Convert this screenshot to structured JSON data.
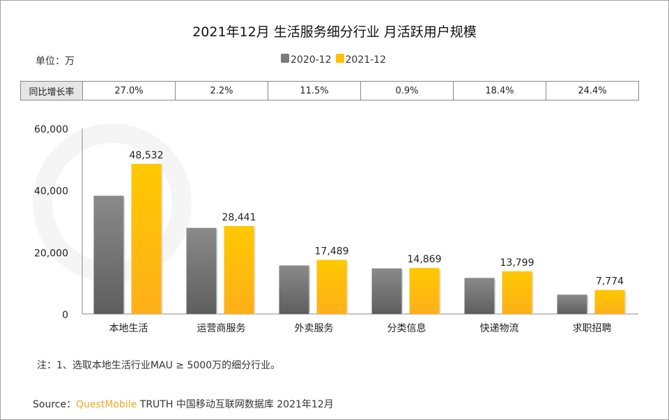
{
  "watermark": "QUEST MOBILE",
  "chart_data": {
    "type": "bar",
    "title": "2021年12月 生活服务细分行业 月活跃用户规模",
    "unit_label": "单位：万",
    "categories": [
      "本地生活",
      "运营商服务",
      "外卖服务",
      "分类信息",
      "快递物流",
      "求职招聘"
    ],
    "series": [
      {
        "name": "2020-12",
        "values": [
          38214,
          27829,
          15685,
          14737,
          11655,
          6249
        ],
        "color": "#7a7a7a"
      },
      {
        "name": "2021-12",
        "values": [
          48532,
          28441,
          17489,
          14869,
          13799,
          7774
        ],
        "color": "#ffc000"
      }
    ],
    "data_labels": [
      "48,532",
      "28,441",
      "17,489",
      "14,869",
      "13,799",
      "7,774"
    ],
    "yticks": [
      "0",
      "20,000",
      "40,000",
      "60,000"
    ],
    "ylim": [
      0,
      60000
    ],
    "grid": false,
    "legend": "top-center",
    "growth_table": {
      "header": "同比增长率",
      "values": [
        "27.0%",
        "2.2%",
        "11.5%",
        "0.9%",
        "18.4%",
        "24.4%"
      ]
    }
  },
  "note": "注：1、选取本地生活行业MAU ≥ 5000万的细分行业。",
  "source": {
    "prefix": "Source：",
    "brand": "QuestMobile",
    "rest": " TRUTH 中国移动互联网数据库 2021年12月"
  }
}
